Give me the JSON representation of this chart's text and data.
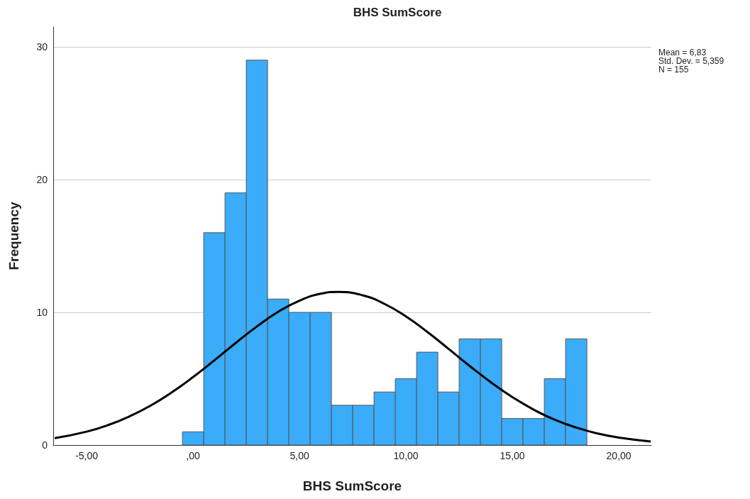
{
  "chart_data": {
    "type": "histogram",
    "title": "BHS SumScore",
    "xlabel": "BHS SumScore",
    "ylabel": "Frequency",
    "bins": [
      -0.5,
      0.5,
      1.5,
      2.5,
      3.5,
      4.5,
      5.5,
      6.5,
      7.5,
      8.5,
      9.5,
      10.5,
      11.5,
      12.5,
      13.5,
      14.5,
      15.5,
      16.5,
      17.5,
      18.5
    ],
    "values": [
      1,
      16,
      19,
      29,
      11,
      10,
      10,
      3,
      3,
      4,
      5,
      7,
      4,
      8,
      8,
      2,
      2,
      5,
      8
    ],
    "color": "#3aacf9",
    "series": [
      {
        "type": "line",
        "color": "#000000",
        "x": [
          -6.5,
          -5,
          -4,
          -3,
          -2,
          -1,
          0,
          1,
          2,
          3,
          4,
          5,
          6,
          6.83,
          8,
          9,
          10,
          11,
          12,
          13,
          14,
          15,
          16,
          17,
          18,
          19,
          20,
          21.5
        ],
        "values": [
          0.52,
          1.01,
          1.5,
          2.15,
          2.97,
          3.97,
          5.12,
          6.38,
          7.69,
          8.94,
          10.04,
          10.88,
          11.4,
          11.54,
          11.27,
          10.63,
          9.69,
          8.53,
          7.25,
          5.95,
          4.72,
          3.61,
          2.67,
          1.9,
          1.32,
          0.87,
          0.56,
          0.27
        ]
      }
    ],
    "xlim": [
      -6.57,
      21.53
    ],
    "xticks": [
      {
        "value": -5,
        "label": "-5,00"
      },
      {
        "value": 0,
        "label": ",00"
      },
      {
        "value": 5,
        "label": "5,00"
      },
      {
        "value": 10,
        "label": "10,00"
      },
      {
        "value": 15,
        "label": "15,00"
      },
      {
        "value": 20,
        "label": "20,00"
      }
    ],
    "ylim": [
      0,
      31.5
    ],
    "yticks": [
      0,
      10,
      20,
      30
    ],
    "grid": "y",
    "marker": "none",
    "line_style": "solid",
    "annotations": [
      "Mean = 6,83",
      "Std. Dev. = 5,359",
      "N = 155"
    ]
  }
}
